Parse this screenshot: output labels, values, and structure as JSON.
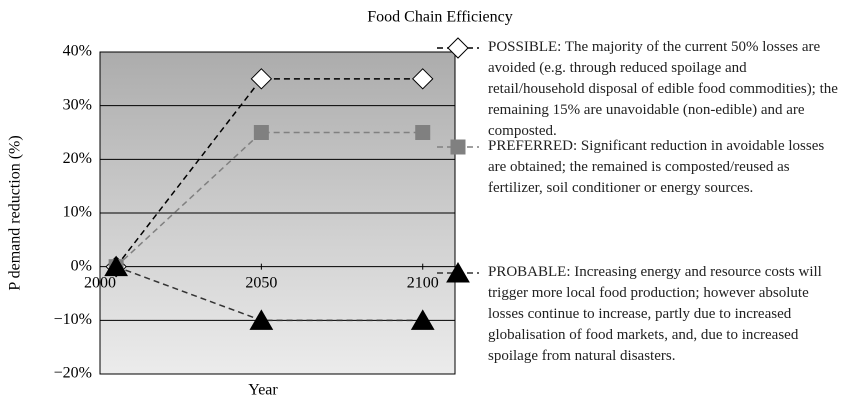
{
  "chart_data": {
    "type": "line",
    "title": "Food Chain Efficiency",
    "xlabel": "Year",
    "ylabel": "P demand reduction (%)",
    "x": [
      2005,
      2050,
      2100
    ],
    "series": [
      {
        "name": "POSSIBLE: The majority of the current 50% losses are avoided (e.g. through reduced spoilage and retail/household disposal of edible food commodities); the remaining 15% are unavoidable (non-edible) and are composted.",
        "color": "#000000",
        "marker": "diamond",
        "values": [
          0,
          35,
          35
        ]
      },
      {
        "name": "PREFERRED: Significant reduction in avoidable losses are obtained; the remained is composted/reused as fertilizer, soil conditioner or energy sources.",
        "color": "#808080",
        "marker": "square",
        "values": [
          0,
          25,
          25
        ]
      },
      {
        "name": "PROBABLE: Increasing energy and resource costs will trigger more local food production; however absolute losses continue to increase, partly due to increased globalisation of food markets, and, due to increased spoilage from natural disasters.",
        "color": "#333333",
        "marker": "triangle",
        "values": [
          0,
          -10,
          -10
        ]
      }
    ],
    "xlim": [
      2000,
      2110
    ],
    "xticks": [
      2000,
      2050,
      2100
    ],
    "ylim": [
      -20,
      40
    ],
    "yticks": [
      {
        "value": -20,
        "label": "−20%"
      },
      {
        "value": -10,
        "label": "−10%"
      },
      {
        "value": 0,
        "label": "0%"
      },
      {
        "value": 10,
        "label": "10%"
      },
      {
        "value": 20,
        "label": "20%"
      },
      {
        "value": 30,
        "label": "30%"
      },
      {
        "value": 40,
        "label": "40%"
      }
    ],
    "grid": true,
    "legend": "right"
  }
}
